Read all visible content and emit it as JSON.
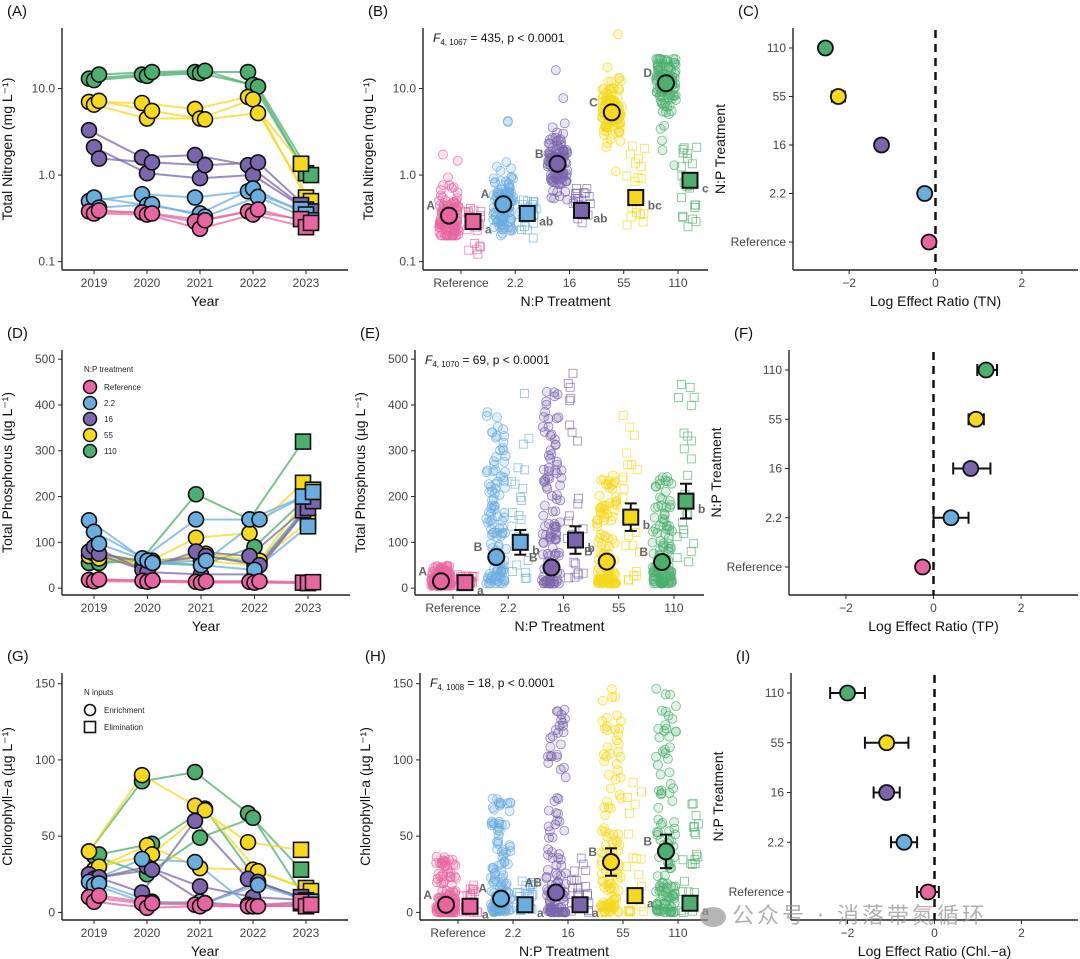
{
  "treatment_colors": {
    "Reference": "#e8669f",
    "2.2": "#6aaee0",
    "16": "#7b65ad",
    "55": "#f6d81c",
    "110": "#4caf6e"
  },
  "treatments": [
    "Reference",
    "2.2",
    "16",
    "55",
    "110"
  ],
  "watermark": "公众号 · 消落带氮循环",
  "chart_data": [
    {
      "id": "A",
      "panel_label": "(A)",
      "type": "line",
      "yscale": "log",
      "xlabel": "Year",
      "ylabel": "Total Nitrogen (mg L⁻¹)",
      "x": [
        "2019",
        "2020",
        "2021",
        "2022",
        "2023"
      ],
      "ylim": [
        0.08,
        50
      ],
      "yticks": [
        0.1,
        1.0,
        10.0
      ],
      "ytick_labels": [
        "0.1",
        "1.0",
        "10.0"
      ],
      "note": "Circles = N enrichment years (2019-2022); squares = N elimination (2023). Three replicate ponds per treatment.",
      "series": [
        {
          "treatment": "110",
          "values": [
            13,
            14.5,
            15.5,
            15.5,
            1.35
          ]
        },
        {
          "treatment": "110",
          "values": [
            12.5,
            14,
            15,
            11,
            1.05
          ]
        },
        {
          "treatment": "110",
          "values": [
            14.5,
            15.5,
            16,
            10.5,
            1.0
          ]
        },
        {
          "treatment": "55",
          "values": [
            7.0,
            6.8,
            5.8,
            8.0,
            1.35
          ]
        },
        {
          "treatment": "55",
          "values": [
            6.5,
            4.5,
            4.5,
            7.5,
            0.55
          ]
        },
        {
          "treatment": "55",
          "values": [
            7.2,
            5.5,
            4.4,
            5.2,
            0.5
          ]
        },
        {
          "treatment": "16",
          "values": [
            3.3,
            1.6,
            1.7,
            1.3,
            0.45
          ]
        },
        {
          "treatment": "16",
          "values": [
            2.1,
            1.05,
            0.92,
            1.0,
            0.4
          ]
        },
        {
          "treatment": "16",
          "values": [
            1.55,
            1.4,
            1.3,
            1.4,
            0.38
          ]
        },
        {
          "treatment": "2.2",
          "values": [
            0.5,
            0.6,
            0.55,
            0.65,
            0.4
          ]
        },
        {
          "treatment": "2.2",
          "values": [
            0.55,
            0.45,
            0.36,
            0.7,
            0.35
          ]
        },
        {
          "treatment": "2.2",
          "values": [
            0.42,
            0.46,
            0.33,
            0.56,
            0.3
          ]
        },
        {
          "treatment": "Reference",
          "values": [
            0.38,
            0.37,
            0.29,
            0.38,
            0.31
          ]
        },
        {
          "treatment": "Reference",
          "values": [
            0.36,
            0.35,
            0.24,
            0.35,
            0.25
          ]
        },
        {
          "treatment": "Reference",
          "values": [
            0.39,
            0.36,
            0.3,
            0.4,
            0.28
          ]
        }
      ]
    },
    {
      "id": "B",
      "panel_label": "(B)",
      "type": "scatter",
      "yscale": "log",
      "xlabel": "N:P Treatment",
      "ylabel": "Total Nitrogen (mg L⁻¹)",
      "categories": [
        "Reference",
        "2.2",
        "16",
        "55",
        "110"
      ],
      "ylim": [
        0.08,
        50
      ],
      "yticks": [
        0.1,
        1.0,
        10.0
      ],
      "ytick_labels": [
        "0.1",
        "1.0",
        "10.0"
      ],
      "stat": {
        "F": "F",
        "df": "4, 1067",
        "rest": " = 435, p < 0.0001"
      },
      "enrichment_mean": [
        0.34,
        0.46,
        1.35,
        5.3,
        11.5
      ],
      "elimination_mean": [
        0.29,
        0.36,
        0.39,
        0.55,
        0.87
      ],
      "enrichment_letters": [
        "A",
        "A",
        "B",
        "C",
        "D"
      ],
      "elimination_letters": [
        "a",
        "ab",
        "ab",
        "bc",
        "c"
      ],
      "enrichment_range": [
        [
          0.2,
          2.0
        ],
        [
          0.2,
          4.8
        ],
        [
          0.16,
          21
        ],
        [
          0.75,
          45
        ],
        [
          1.0,
          22
        ]
      ],
      "elimination_range": [
        [
          0.12,
          0.42
        ],
        [
          0.17,
          0.6
        ],
        [
          0.28,
          0.72
        ],
        [
          0.2,
          2.4
        ],
        [
          0.22,
          2.1
        ]
      ]
    },
    {
      "id": "C",
      "panel_label": "(C)",
      "type": "scatter",
      "xlabel": "Log Effect Ratio (TN)",
      "ylabel": "N:P Treatment",
      "categories": [
        "Reference",
        "2.2",
        "16",
        "55",
        "110"
      ],
      "xlim": [
        -3.3,
        3.3
      ],
      "xticks": [
        -2,
        0,
        2
      ],
      "xtick_labels": [
        "−2",
        "0",
        "2"
      ],
      "values": [
        -0.15,
        -0.25,
        -1.25,
        -2.25,
        -2.55
      ],
      "ci_low": [
        -0.15,
        -0.25,
        -1.25,
        -2.4,
        -2.55
      ],
      "ci_high": [
        -0.15,
        -0.25,
        -1.25,
        -2.1,
        -2.55
      ],
      "reference_line": 0
    },
    {
      "id": "D",
      "panel_label": "(D)",
      "type": "line",
      "xlabel": "Year",
      "ylabel": "Total Phosphorus (µg L⁻¹)",
      "x": [
        "2019",
        "2020",
        "2021",
        "2022",
        "2023"
      ],
      "ylim": [
        -15,
        520
      ],
      "yticks": [
        0,
        100,
        200,
        300,
        400,
        500
      ],
      "ytick_labels": [
        "0",
        "100",
        "200",
        "300",
        "400",
        "500"
      ],
      "legend": {
        "title": "N:P treatment",
        "items": [
          "Reference",
          "2.2",
          "16",
          "55",
          "110"
        ],
        "position": "top-left"
      },
      "series": [
        {
          "treatment": "110",
          "values": [
            55,
            65,
            205,
            150,
            320
          ]
        },
        {
          "treatment": "110",
          "values": [
            75,
            55,
            50,
            90,
            200
          ]
        },
        {
          "treatment": "110",
          "values": [
            55,
            60,
            70,
            55,
            195
          ]
        },
        {
          "treatment": "55",
          "values": [
            70,
            50,
            110,
            120,
            230
          ]
        },
        {
          "treatment": "55",
          "values": [
            75,
            60,
            60,
            50,
            145
          ]
        },
        {
          "treatment": "55",
          "values": [
            65,
            55,
            75,
            60,
            215
          ]
        },
        {
          "treatment": "16",
          "values": [
            80,
            40,
            80,
            70,
            170
          ]
        },
        {
          "treatment": "16",
          "values": [
            90,
            35,
            30,
            30,
            175
          ]
        },
        {
          "treatment": "16",
          "values": [
            75,
            55,
            70,
            50,
            190
          ]
        },
        {
          "treatment": "2.2",
          "values": [
            148,
            65,
            150,
            150,
            200
          ]
        },
        {
          "treatment": "2.2",
          "values": [
            123,
            60,
            50,
            40,
            135
          ]
        },
        {
          "treatment": "2.2",
          "values": [
            97,
            55,
            60,
            150,
            210
          ]
        },
        {
          "treatment": "Reference",
          "values": [
            18,
            16,
            14,
            14,
            12
          ]
        },
        {
          "treatment": "Reference",
          "values": [
            15,
            14,
            12,
            12,
            11
          ]
        },
        {
          "treatment": "Reference",
          "values": [
            19,
            17,
            15,
            15,
            13
          ]
        }
      ]
    },
    {
      "id": "E",
      "panel_label": "(E)",
      "type": "scatter",
      "xlabel": "N:P Treatment",
      "ylabel": "Total Phosphorus (µg L⁻¹)",
      "categories": [
        "Reference",
        "2.2",
        "16",
        "55",
        "110"
      ],
      "ylim": [
        -15,
        520
      ],
      "yticks": [
        0,
        100,
        200,
        300,
        400,
        500
      ],
      "ytick_labels": [
        "0",
        "100",
        "200",
        "300",
        "400",
        "500"
      ],
      "stat": {
        "F": "F",
        "df": "4, 1070",
        "rest": " = 69, p < 0.0001"
      },
      "enrichment_mean": [
        15,
        68,
        45,
        58,
        57
      ],
      "elimination_mean": [
        12,
        100,
        105,
        155,
        190
      ],
      "elimination_err": [
        2,
        27,
        30,
        30,
        38
      ],
      "enrichment_letters": [
        "A",
        "B",
        "B",
        "B",
        "B"
      ],
      "elimination_letters": [
        "a",
        "b",
        "b",
        "b",
        "b"
      ],
      "enrichment_range": [
        [
          5,
          50
        ],
        [
          10,
          390
        ],
        [
          10,
          435
        ],
        [
          10,
          255
        ],
        [
          10,
          255
        ]
      ],
      "elimination_range": [
        [
          5,
          30
        ],
        [
          15,
          440
        ],
        [
          15,
          490
        ],
        [
          15,
          400
        ],
        [
          15,
          475
        ]
      ]
    },
    {
      "id": "F",
      "panel_label": "(F)",
      "type": "scatter",
      "xlabel": "Log Effect Ratio (TP)",
      "ylabel": "N:P Treatment",
      "categories": [
        "Reference",
        "2.2",
        "16",
        "55",
        "110"
      ],
      "xlim": [
        -3.3,
        3.3
      ],
      "xticks": [
        -2,
        0,
        2
      ],
      "xtick_labels": [
        "−2",
        "0",
        "2"
      ],
      "values": [
        -0.25,
        0.4,
        0.85,
        0.97,
        1.2
      ],
      "ci_low": [
        -0.25,
        0.0,
        0.45,
        0.8,
        1.0
      ],
      "ci_high": [
        -0.25,
        0.8,
        1.3,
        1.15,
        1.45
      ],
      "reference_line": 0
    },
    {
      "id": "G",
      "panel_label": "(G)",
      "type": "line",
      "xlabel": "Year",
      "ylabel": "Chlorophyll−a (µg L⁻¹)",
      "x": [
        "2019",
        "2020",
        "2021",
        "2022",
        "2023"
      ],
      "ylim": [
        -5,
        157
      ],
      "yticks": [
        0,
        50,
        100,
        150
      ],
      "ytick_labels": [
        "0",
        "50",
        "100",
        "150"
      ],
      "legend": {
        "title": "N inputs",
        "items": [
          "Enrichment",
          "Elimination"
        ],
        "position": "top-left"
      },
      "series": [
        {
          "treatment": "110",
          "values": [
            40,
            86,
            92,
            65,
            28
          ]
        },
        {
          "treatment": "110",
          "values": [
            37,
            25,
            49,
            62,
            8
          ]
        },
        {
          "treatment": "110",
          "values": [
            38,
            45,
            68,
            20,
            6
          ]
        },
        {
          "treatment": "55",
          "values": [
            40,
            90,
            70,
            46,
            41
          ]
        },
        {
          "treatment": "55",
          "values": [
            28,
            44,
            29,
            28,
            16
          ]
        },
        {
          "treatment": "55",
          "values": [
            30,
            38,
            67,
            27,
            14
          ]
        },
        {
          "treatment": "16",
          "values": [
            25,
            13,
            60,
            22,
            10
          ]
        },
        {
          "treatment": "16",
          "values": [
            22,
            30,
            17,
            10,
            8
          ]
        },
        {
          "treatment": "16",
          "values": [
            23,
            28,
            6,
            20,
            7
          ]
        },
        {
          "treatment": "2.2",
          "values": [
            20,
            35,
            33,
            5,
            6
          ]
        },
        {
          "treatment": "2.2",
          "values": [
            18,
            6,
            7,
            4,
            5
          ]
        },
        {
          "treatment": "2.2",
          "values": [
            19,
            7,
            6,
            18,
            7
          ]
        },
        {
          "treatment": "Reference",
          "values": [
            10,
            6,
            5,
            4,
            7
          ]
        },
        {
          "treatment": "Reference",
          "values": [
            7,
            3,
            4,
            4,
            4
          ]
        },
        {
          "treatment": "Reference",
          "values": [
            11,
            6,
            6,
            4,
            5
          ]
        }
      ]
    },
    {
      "id": "H",
      "panel_label": "(H)",
      "type": "scatter",
      "xlabel": "N:P Treatment",
      "ylabel": "Chlorophyll−a (µg L⁻¹)",
      "categories": [
        "Reference",
        "2.2",
        "16",
        "55",
        "110"
      ],
      "ylim": [
        -5,
        157
      ],
      "yticks": [
        0,
        50,
        100,
        150
      ],
      "ytick_labels": [
        "0",
        "50",
        "100",
        "150"
      ],
      "stat": {
        "F": "F",
        "df": "4, 1008",
        "rest": " = 18, p < 0.0001"
      },
      "enrichment_mean": [
        5,
        9,
        13,
        33,
        40
      ],
      "enrichment_err": [
        1,
        2,
        3,
        9,
        11
      ],
      "elimination_mean": [
        4,
        5,
        5,
        11,
        6
      ],
      "enrichment_letters": [
        "A",
        "A",
        "AB",
        "B",
        "B"
      ],
      "elimination_letters": [
        "a",
        "a",
        "a",
        "a",
        "a"
      ],
      "enrichment_range": [
        [
          0,
          37
        ],
        [
          0,
          75
        ],
        [
          0,
          143
        ],
        [
          0,
          147
        ],
        [
          0,
          150
        ]
      ],
      "elimination_range": [
        [
          0,
          19
        ],
        [
          0,
          21
        ],
        [
          0,
          36
        ],
        [
          0,
          90
        ],
        [
          0,
          72
        ]
      ]
    },
    {
      "id": "I",
      "panel_label": "(I)",
      "type": "scatter",
      "xlabel": "Log Effect Ratio (Chl.−a)",
      "ylabel": "N:P Treatment",
      "categories": [
        "Reference",
        "2.2",
        "16",
        "55",
        "110"
      ],
      "xlim": [
        -3.3,
        3.3
      ],
      "xticks": [
        -2,
        0,
        2
      ],
      "xtick_labels": [
        "−2",
        "0",
        "2"
      ],
      "values": [
        -0.15,
        -0.7,
        -1.1,
        -1.1,
        -2.0
      ],
      "ci_low": [
        -0.4,
        -1.0,
        -1.4,
        -1.6,
        -2.4
      ],
      "ci_high": [
        0.1,
        -0.4,
        -0.8,
        -0.6,
        -1.6
      ],
      "reference_line": 0
    }
  ]
}
